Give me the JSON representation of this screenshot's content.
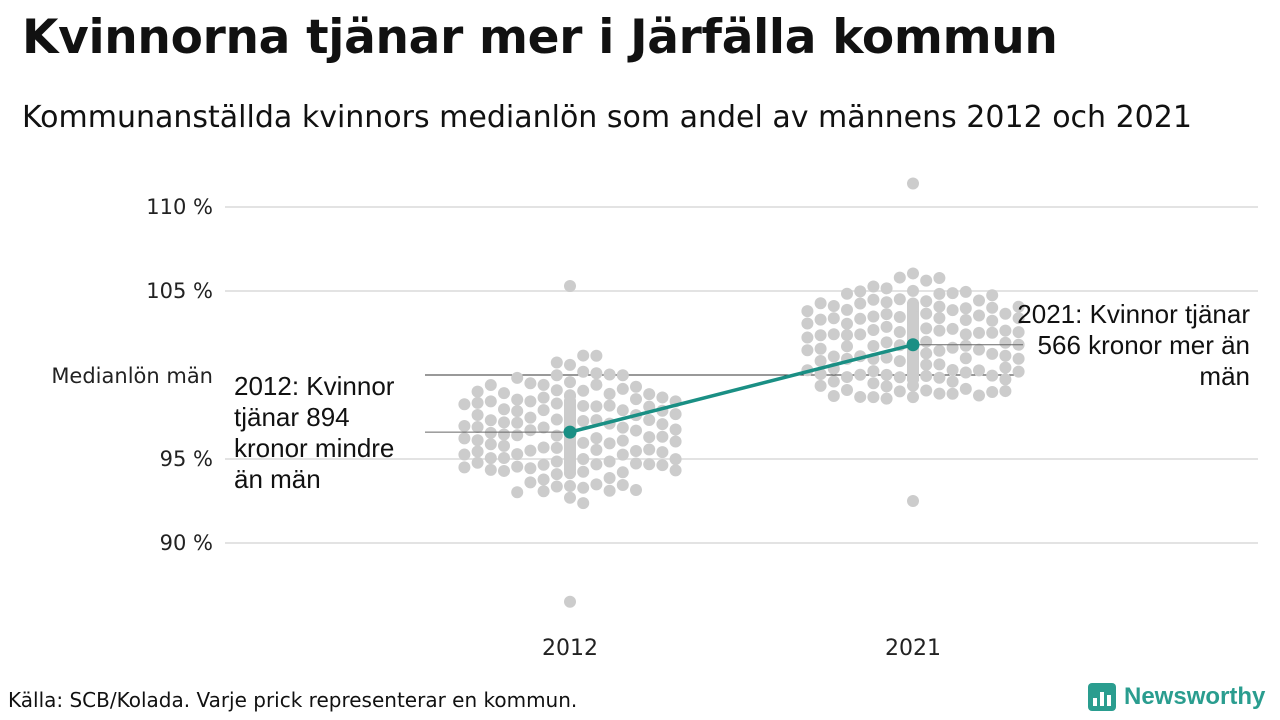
{
  "title": "Kvinnorna tjänar mer i Järfälla kommun",
  "subtitle": "Kommunanställda kvinnors medianlön som andel av männens 2012 och 2021",
  "source": "Källa: SCB/Kolada. Varje prick representerar en kommun.",
  "brand": "Newsworthy",
  "colors": {
    "dots": "#cccccc",
    "highlight": "#1a8f84",
    "grid": "#e3e3e3",
    "reference": "#333333",
    "brand": "#2a9d8f"
  },
  "chart_data": {
    "type": "scatter",
    "ylim": [
      85,
      112
    ],
    "yticks": [
      90,
      95,
      105,
      110
    ],
    "ytick_labels": [
      "90 %",
      "95 %",
      "105 %",
      "110 %"
    ],
    "categories": [
      "2012",
      "2021"
    ],
    "reference": {
      "label": "Medianlön män",
      "value": 100
    },
    "highlight": {
      "values": [
        96.6,
        101.8
      ],
      "annotations": [
        "2012: Kvinnor tjänar 894 kronor mindre än män",
        "2021: Kvinnor tjänar 566 kronor mer än män"
      ]
    },
    "distributions": [
      {
        "category": "2012",
        "min": 86.5,
        "max": 105.3,
        "n": 290
      },
      {
        "category": "2021",
        "min": 92.5,
        "max": 111.4,
        "n": 290
      }
    ]
  }
}
